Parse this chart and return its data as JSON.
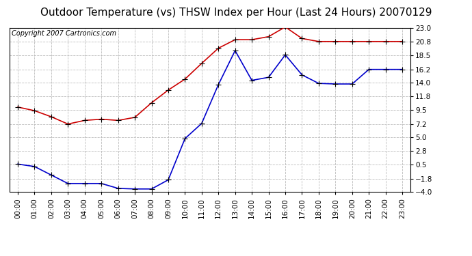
{
  "title": "Outdoor Temperature (vs) THSW Index per Hour (Last 24 Hours) 20070129",
  "copyright": "Copyright 2007 Cartronics.com",
  "hours": [
    "00:00",
    "01:00",
    "02:00",
    "03:00",
    "04:00",
    "05:00",
    "06:00",
    "07:00",
    "08:00",
    "09:00",
    "10:00",
    "11:00",
    "12:00",
    "13:00",
    "14:00",
    "15:00",
    "16:00",
    "17:00",
    "18:00",
    "19:00",
    "20:00",
    "21:00",
    "22:00",
    "23:00"
  ],
  "red_data": [
    10.0,
    9.4,
    8.4,
    7.2,
    7.8,
    8.0,
    7.8,
    8.3,
    10.7,
    12.8,
    14.6,
    17.2,
    19.7,
    21.1,
    21.1,
    21.6,
    23.2,
    21.3,
    20.8,
    20.8,
    20.8,
    20.8,
    20.8,
    20.8
  ],
  "blue_data": [
    0.6,
    0.2,
    -1.2,
    -2.6,
    -2.6,
    -2.6,
    -3.4,
    -3.5,
    -3.5,
    -2.0,
    4.8,
    7.3,
    13.7,
    19.3,
    14.4,
    14.9,
    18.6,
    15.3,
    13.9,
    13.8,
    13.8,
    16.2,
    16.2,
    16.2
  ],
  "red_color": "#cc0000",
  "blue_color": "#0000cc",
  "bg_color": "#ffffff",
  "grid_color": "#bbbbbb",
  "yticks": [
    -4.0,
    -1.8,
    0.5,
    2.8,
    5.0,
    7.2,
    9.5,
    11.8,
    14.0,
    16.2,
    18.5,
    20.8,
    23.0
  ],
  "ymin": -4.0,
  "ymax": 23.0,
  "title_fontsize": 11,
  "copyright_fontsize": 7,
  "tick_fontsize": 7.5,
  "marker_size": 3.5,
  "line_width": 1.2
}
